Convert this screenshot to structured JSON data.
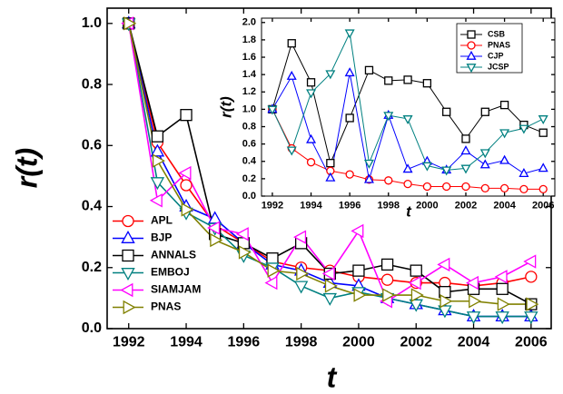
{
  "chart_data": [
    {
      "type": "line",
      "xlabel": "t",
      "ylabel": "r(t)",
      "legend": "lower left",
      "x": [
        1992,
        1993,
        1994,
        1995,
        1996,
        1997,
        1998,
        1999,
        2000,
        2001,
        2002,
        2003,
        2004,
        2005,
        2006
      ],
      "xlim": [
        1991.25,
        2006.7
      ],
      "ylim": [
        0,
        1.05
      ],
      "xticks": [
        1992,
        1994,
        1996,
        1998,
        2000,
        2002,
        2004,
        2006
      ],
      "yticks": [
        {
          "value": 0,
          "label": "0.0"
        },
        0.2,
        0.4,
        0.6,
        0.8,
        {
          "value": 1,
          "label": "1.0"
        }
      ],
      "series": [
        {
          "name": "APL",
          "color": "#ff0000",
          "marker": "circle",
          "values": [
            1.0,
            0.61,
            0.47,
            0.34,
            0.28,
            0.22,
            0.2,
            0.19,
            0.17,
            0.16,
            0.15,
            0.15,
            0.14,
            0.15,
            0.17
          ]
        },
        {
          "name": "BJP",
          "color": "#0000ff",
          "marker": "triangle-up",
          "values": [
            1.0,
            0.58,
            0.4,
            0.36,
            0.28,
            0.21,
            0.19,
            0.15,
            0.14,
            0.1,
            0.08,
            0.06,
            0.04,
            0.04,
            0.04
          ]
        },
        {
          "name": "ANNALS",
          "color": "#000000",
          "marker": "square",
          "values": [
            1.0,
            0.63,
            0.7,
            0.31,
            0.28,
            0.23,
            0.28,
            0.18,
            0.19,
            0.21,
            0.19,
            0.12,
            0.13,
            0.13,
            0.08
          ]
        },
        {
          "name": "EMBOJ",
          "color": "#008080",
          "marker": "triangle-down",
          "values": [
            1.0,
            0.48,
            0.38,
            0.33,
            0.24,
            0.2,
            0.14,
            0.1,
            0.12,
            0.1,
            0.08,
            0.06,
            0.04,
            0.04,
            0.04
          ]
        },
        {
          "name": "SIAMJAM",
          "color": "#ff00ff",
          "marker": "triangle-left",
          "values": [
            1.0,
            0.42,
            0.51,
            0.33,
            0.31,
            0.15,
            0.3,
            0.18,
            0.32,
            0.09,
            0.15,
            0.21,
            0.15,
            0.17,
            0.22
          ]
        },
        {
          "name": "PNAS",
          "color": "#808000",
          "marker": "triangle-right",
          "values": [
            1.0,
            0.55,
            0.39,
            0.29,
            0.25,
            0.19,
            0.18,
            0.14,
            0.11,
            0.11,
            0.11,
            0.09,
            0.09,
            0.08,
            0.08
          ]
        }
      ]
    },
    {
      "type": "line",
      "xlabel": "t",
      "ylabel": "r(t)",
      "legend": "upper right",
      "x": [
        1992,
        1993,
        1994,
        1995,
        1996,
        1997,
        1998,
        1999,
        2000,
        2001,
        2002,
        2003,
        2004,
        2005,
        2006
      ],
      "xlim": [
        1991.44,
        2006.6
      ],
      "ylim": [
        0,
        2.05
      ],
      "xticks": [
        1992,
        1994,
        1996,
        1998,
        2000,
        2002,
        2004,
        2006
      ],
      "yticks": [
        {
          "value": 0,
          "label": "0.0"
        },
        0.2,
        0.4,
        0.6,
        0.8,
        {
          "value": 1,
          "label": "1.0"
        },
        1.2,
        1.4,
        1.6,
        1.8,
        {
          "value": 2,
          "label": "2.0"
        }
      ],
      "series": [
        {
          "name": "CSB",
          "color": "#000000",
          "marker": "square",
          "values": [
            1.0,
            1.76,
            1.31,
            0.38,
            0.9,
            1.45,
            1.33,
            1.34,
            1.3,
            0.97,
            0.66,
            0.97,
            1.05,
            0.82,
            0.73
          ]
        },
        {
          "name": "PNAS",
          "color": "#ff0000",
          "marker": "circle",
          "values": [
            1.0,
            0.55,
            0.39,
            0.29,
            0.25,
            0.19,
            0.18,
            0.14,
            0.11,
            0.11,
            0.11,
            0.09,
            0.09,
            0.08,
            0.08
          ]
        },
        {
          "name": "CJP",
          "color": "#0000ff",
          "marker": "triangle-up",
          "values": [
            1.0,
            1.38,
            0.65,
            0.21,
            1.42,
            0.19,
            0.93,
            0.31,
            0.4,
            0.3,
            0.52,
            0.36,
            0.41,
            0.26,
            0.32
          ]
        },
        {
          "name": "JCSP",
          "color": "#008080",
          "marker": "triangle-down",
          "values": [
            1.0,
            0.53,
            1.19,
            1.41,
            1.88,
            0.38,
            0.93,
            0.89,
            0.35,
            0.3,
            0.32,
            0.5,
            0.73,
            0.78,
            0.89
          ]
        }
      ]
    }
  ]
}
